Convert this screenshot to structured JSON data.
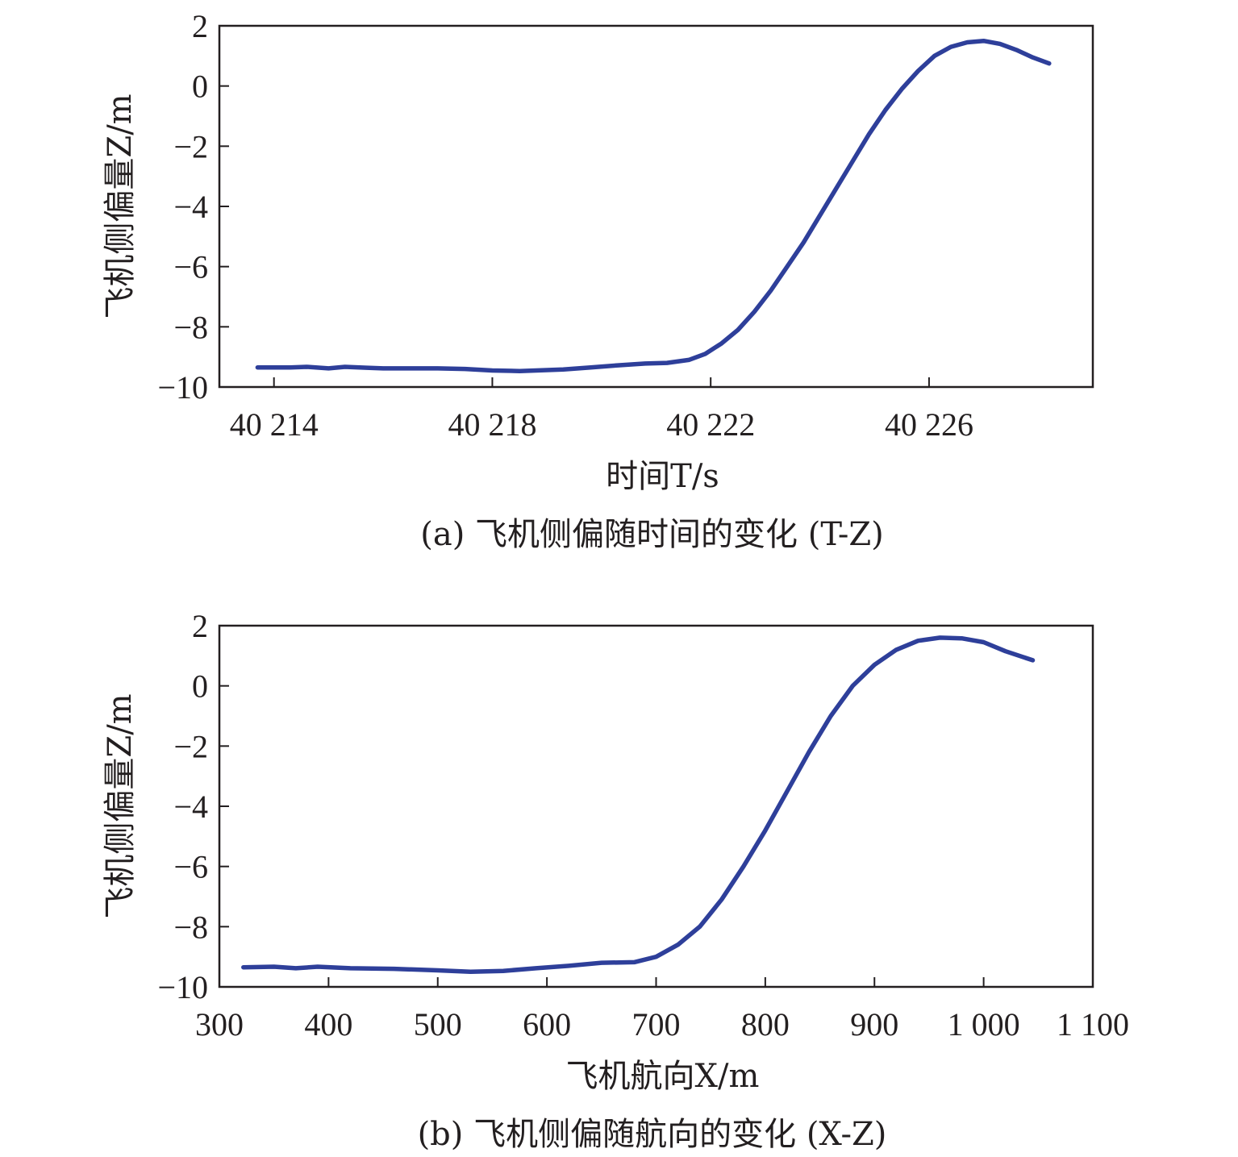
{
  "chart_data": [
    {
      "type": "line",
      "caption": "(a) 飞机侧偏随时间的变化 (T-Z)",
      "xlabel": "时间T/s",
      "ylabel": "飞机侧偏量Z/m",
      "xlim": [
        40213,
        40229
      ],
      "ylim": [
        -10,
        2
      ],
      "xticks": [
        40214,
        40218,
        40222,
        40226
      ],
      "xtick_labels": [
        "40 214",
        "40 218",
        "40 222",
        "40 226"
      ],
      "yticks": [
        2,
        0,
        -2,
        -4,
        -6,
        -8,
        -10
      ],
      "ytick_labels": [
        "2",
        "0",
        "−2",
        "−4",
        "−6",
        "−8",
        "−10"
      ],
      "grid": false,
      "series": [
        {
          "color": "#2e3f9a",
          "x": [
            40213.7,
            40214.3,
            40214.6,
            40215.0,
            40215.3,
            40215.7,
            40216.0,
            40216.5,
            40217.0,
            40217.5,
            40218.0,
            40218.5,
            40218.8,
            40219.3,
            40219.8,
            40220.3,
            40220.8,
            40221.2,
            40221.6,
            40221.9,
            40222.2,
            40222.5,
            40222.8,
            40223.1,
            40223.4,
            40223.7,
            40224.0,
            40224.3,
            40224.6,
            40224.9,
            40225.2,
            40225.5,
            40225.8,
            40226.1,
            40226.4,
            40226.7,
            40227.0,
            40227.3,
            40227.6,
            40227.9,
            40228.2
          ],
          "y": [
            -9.35,
            -9.35,
            -9.33,
            -9.38,
            -9.33,
            -9.36,
            -9.38,
            -9.38,
            -9.38,
            -9.4,
            -9.45,
            -9.47,
            -9.45,
            -9.42,
            -9.35,
            -9.28,
            -9.22,
            -9.2,
            -9.1,
            -8.9,
            -8.55,
            -8.1,
            -7.5,
            -6.8,
            -6.0,
            -5.2,
            -4.3,
            -3.4,
            -2.5,
            -1.6,
            -0.8,
            -0.1,
            0.5,
            1.0,
            1.3,
            1.45,
            1.5,
            1.4,
            1.2,
            0.95,
            0.75
          ]
        }
      ]
    },
    {
      "type": "line",
      "caption": "(b) 飞机侧偏随航向的变化 (X-Z)",
      "xlabel": "飞机航向X/m",
      "ylabel": "飞机侧偏量Z/m",
      "xlim": [
        300,
        1100
      ],
      "ylim": [
        -10,
        2
      ],
      "xticks": [
        300,
        400,
        500,
        600,
        700,
        800,
        900,
        1000,
        1100
      ],
      "xtick_labels": [
        "300",
        "400",
        "500",
        "600",
        "700",
        "800",
        "900",
        "1 000",
        "1 100"
      ],
      "yticks": [
        2,
        0,
        -2,
        -4,
        -6,
        -8,
        -10
      ],
      "ytick_labels": [
        "2",
        "0",
        "−2",
        "−4",
        "−6",
        "−8",
        "−10"
      ],
      "grid": false,
      "series": [
        {
          "color": "#2e3f9a",
          "x": [
            322,
            350,
            370,
            390,
            420,
            460,
            500,
            530,
            560,
            590,
            620,
            650,
            680,
            700,
            720,
            740,
            760,
            780,
            800,
            820,
            840,
            860,
            880,
            900,
            920,
            940,
            960,
            980,
            1000,
            1020,
            1045
          ],
          "y": [
            -9.35,
            -9.33,
            -9.38,
            -9.33,
            -9.38,
            -9.4,
            -9.45,
            -9.5,
            -9.47,
            -9.38,
            -9.3,
            -9.2,
            -9.18,
            -9.0,
            -8.6,
            -8.0,
            -7.1,
            -6.0,
            -4.8,
            -3.5,
            -2.2,
            -1.0,
            0.0,
            0.7,
            1.2,
            1.5,
            1.6,
            1.58,
            1.45,
            1.15,
            0.85
          ]
        }
      ]
    }
  ]
}
